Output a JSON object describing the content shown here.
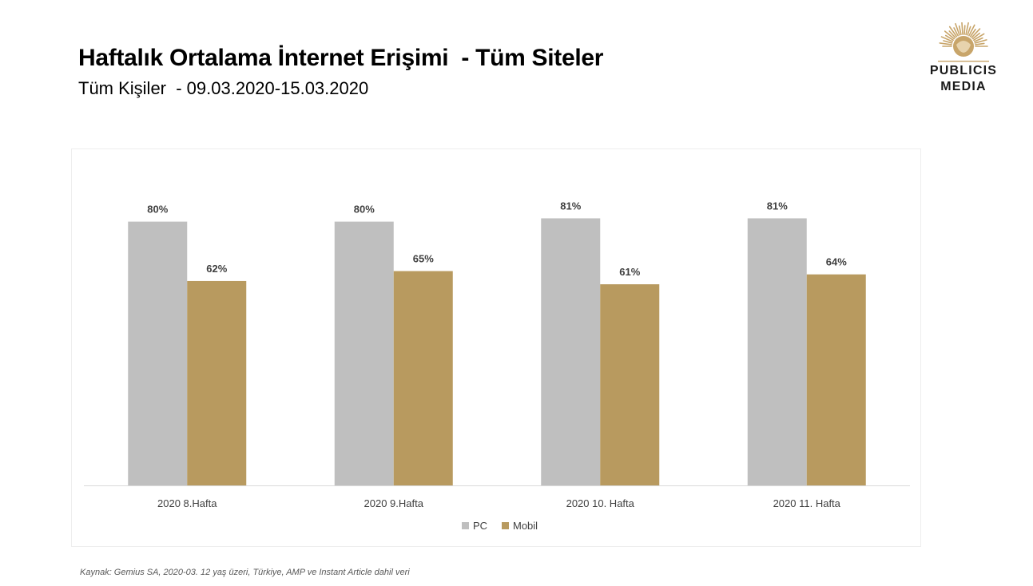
{
  "header": {
    "title": "Haftalık Ortalama İnternet Erişimi  - Tüm Siteler",
    "subtitle": "Tüm Kişiler  - 09.03.2020-15.03.2020"
  },
  "logo": {
    "line1": "PUBLICIS",
    "line2": "MEDIA"
  },
  "footer": {
    "source": "Kaynak: Gemius SA, 2020-03. 12 yaş üzeri, Türkiye, AMP ve Instant Article dahil veri"
  },
  "colors": {
    "pc": "#bfbfbf",
    "mobil": "#b89a5f",
    "axis": "#d9d9d9",
    "label": "#404040"
  },
  "chart_data": {
    "type": "bar",
    "categories": [
      "2020 8.Hafta",
      "2020 9.Hafta",
      "2020 10. Hafta",
      "2020 11. Hafta"
    ],
    "series": [
      {
        "name": "PC",
        "values": [
          80,
          80,
          81,
          81
        ],
        "labels": [
          "80%",
          "80%",
          "81%",
          "81%"
        ]
      },
      {
        "name": "Mobil",
        "values": [
          62,
          65,
          61,
          64
        ],
        "labels": [
          "62%",
          "65%",
          "61%",
          "64%"
        ]
      }
    ],
    "ylim": [
      0,
      100
    ],
    "grid": false,
    "legend": "bottom"
  }
}
